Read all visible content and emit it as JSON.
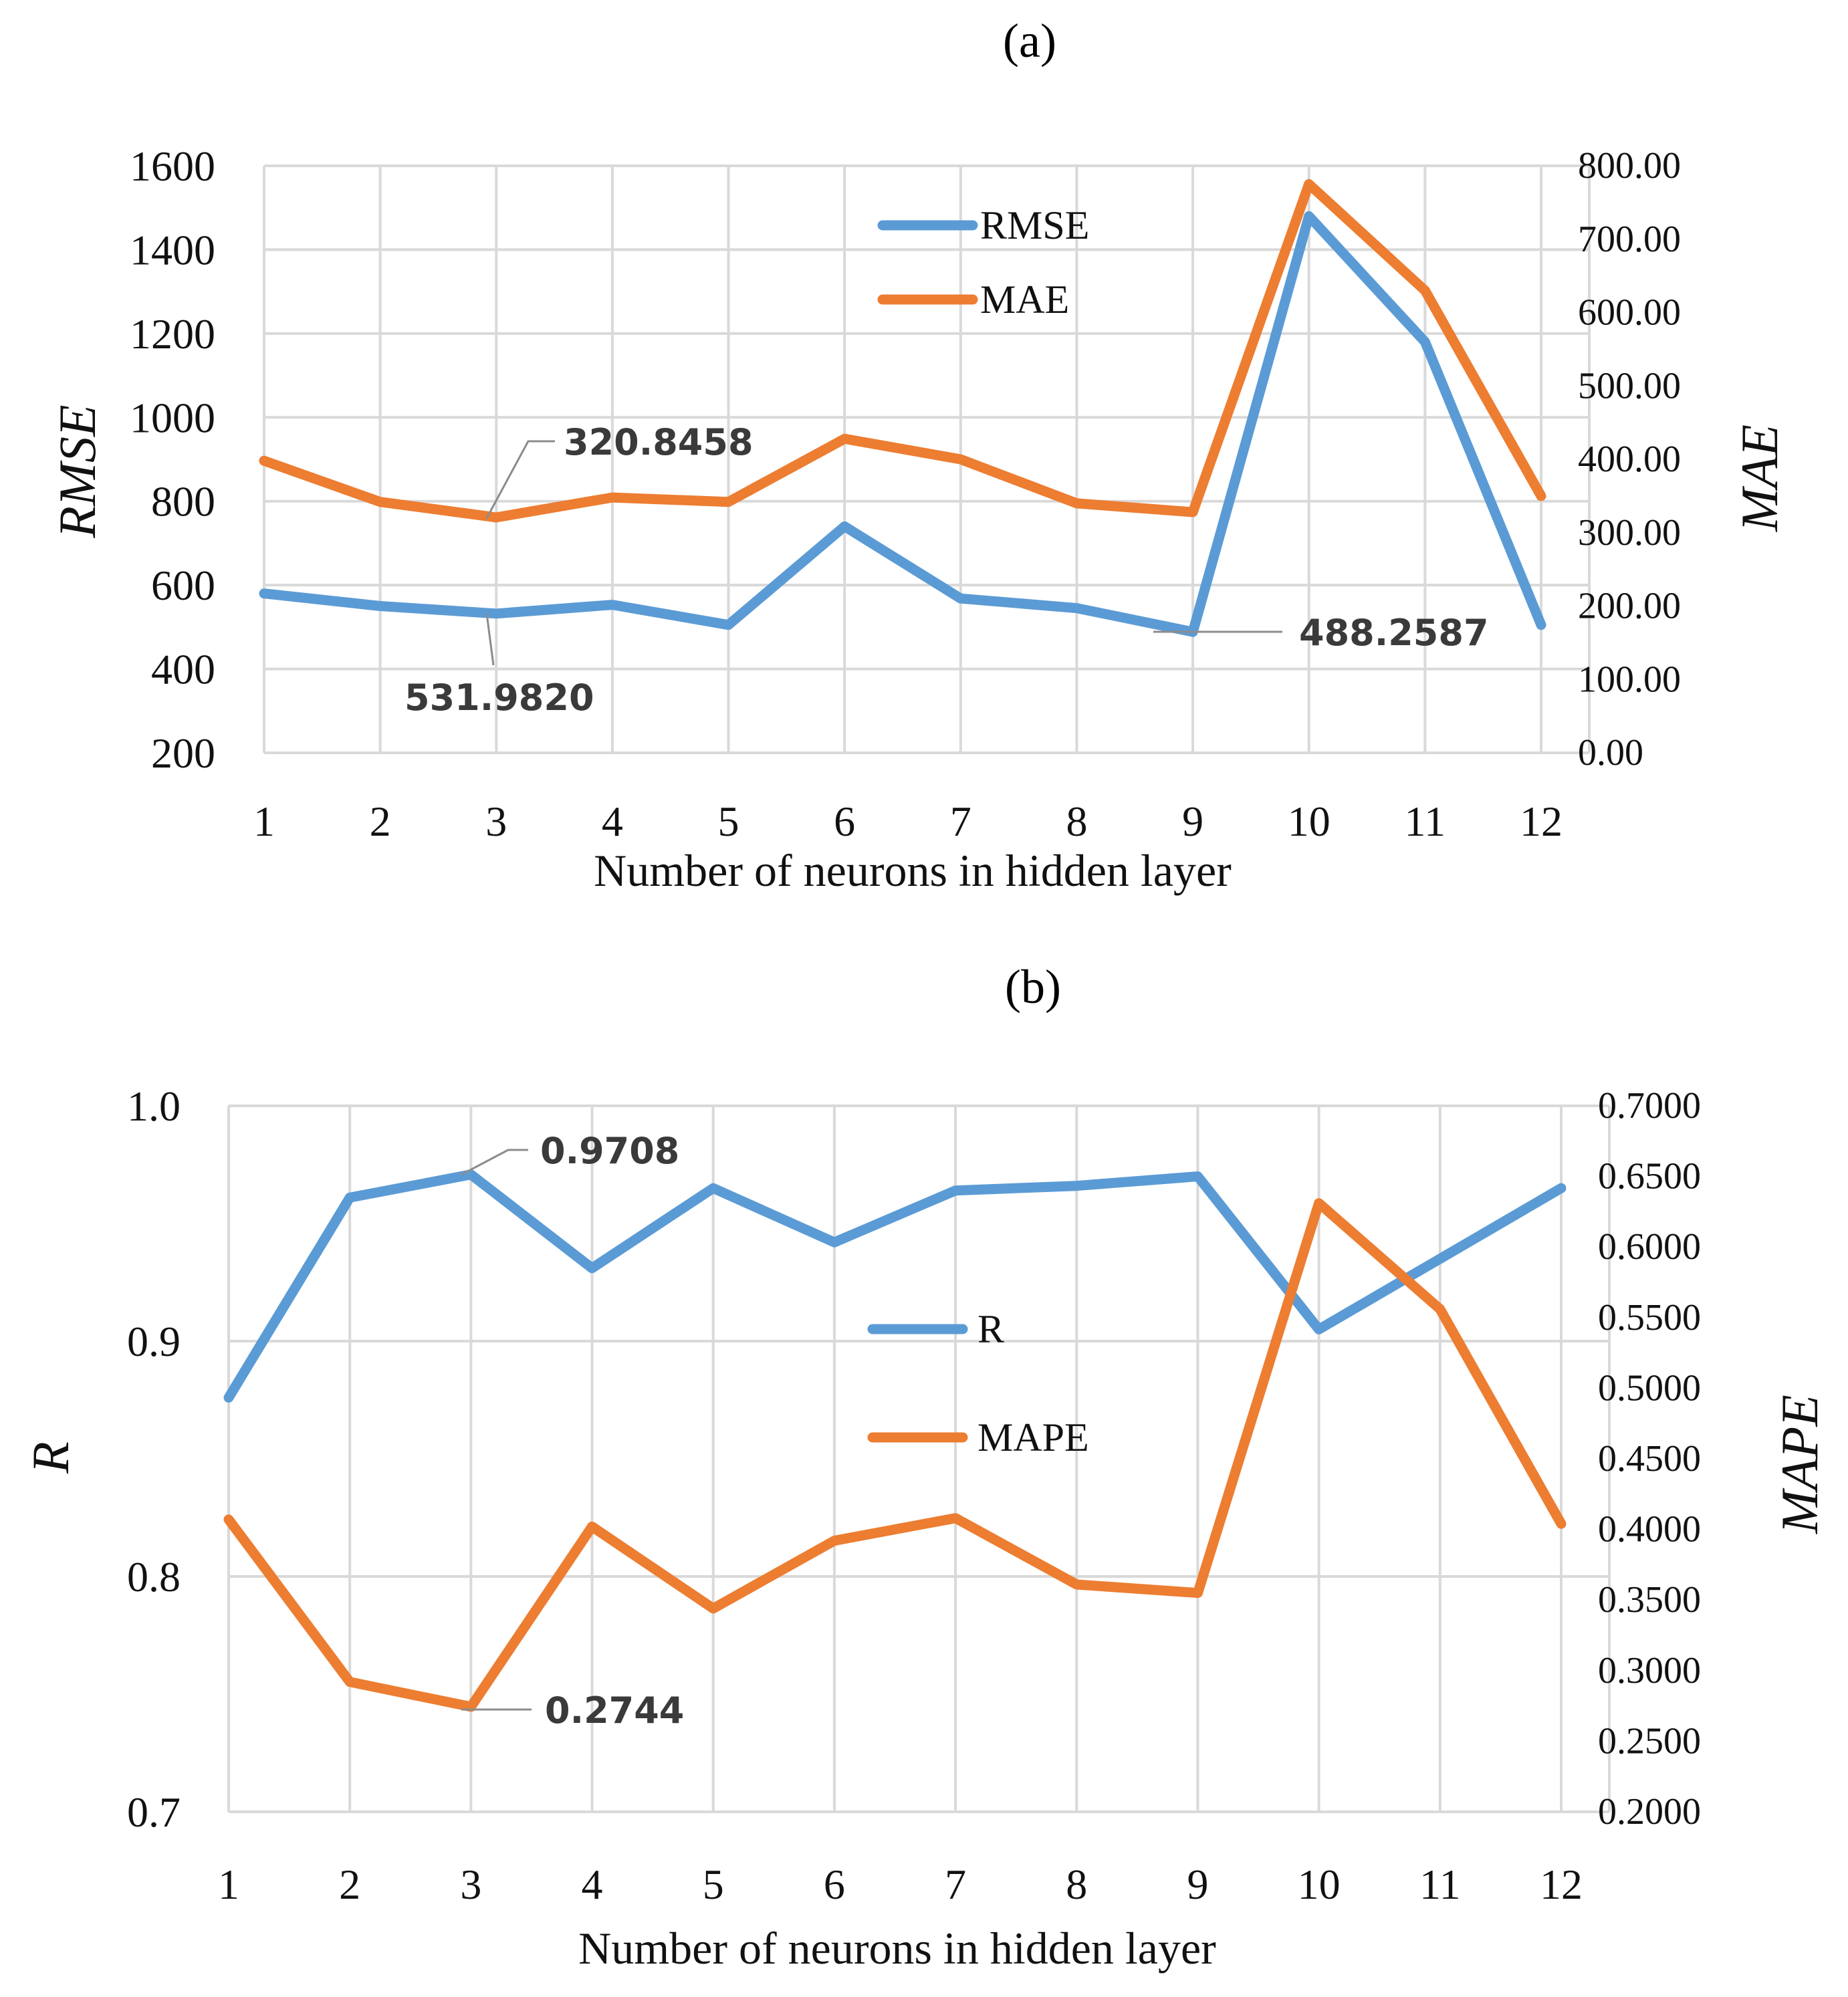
{
  "chart_data": [
    {
      "panel_label": "(a)",
      "type": "line",
      "x": [
        1,
        2,
        3,
        4,
        5,
        6,
        7,
        8,
        9,
        10,
        11,
        12
      ],
      "xlabel": "Number of neurons in hidden layer",
      "ylabel": "RMSE",
      "ylabel_right": "MAE",
      "ylim": [
        200,
        1600
      ],
      "ylim_right": [
        0,
        800
      ],
      "yticks": [
        "1600",
        "1400",
        "1200",
        "1000",
        "800",
        "600",
        "400",
        "200"
      ],
      "yticks_right": [
        "800.00",
        "700.00",
        "600.00",
        "500.00",
        "400.00",
        "300.00",
        "200.00",
        "100.00",
        "0.00"
      ],
      "grid": true,
      "legend_position": "top-center",
      "series": [
        {
          "name": "RMSE",
          "axis": "left",
          "color": "#5b9bd5",
          "values": [
            580,
            550,
            531.982,
            553,
            505,
            740,
            568,
            545,
            488.2587,
            1480,
            1180,
            505
          ]
        },
        {
          "name": "MAE",
          "axis": "right",
          "color": "#ed7d31",
          "values": [
            398,
            342,
            320.8458,
            348,
            342,
            428,
            400,
            340,
            328,
            775,
            630,
            350
          ]
        }
      ],
      "annotations": [
        {
          "text": "320.8458",
          "series": "MAE",
          "x": 3
        },
        {
          "text": "531.9820",
          "series": "RMSE",
          "x": 3
        },
        {
          "text": "488.2587",
          "series": "RMSE",
          "x": 9
        }
      ]
    },
    {
      "panel_label": "(b)",
      "type": "line",
      "x": [
        1,
        2,
        3,
        4,
        5,
        6,
        7,
        8,
        9,
        10,
        11,
        12
      ],
      "xlabel": "Number of neurons in hidden layer",
      "ylabel": "R",
      "ylabel_right": "MAPE",
      "ylim": [
        0.7,
        1.0
      ],
      "ylim_right": [
        0.2,
        0.7
      ],
      "yticks": [
        "1.0",
        "0.9",
        "0.8",
        "0.7"
      ],
      "yticks_right": [
        "0.7000",
        "0.6500",
        "0.6000",
        "0.5500",
        "0.5000",
        "0.4500",
        "0.4000",
        "0.3500",
        "0.3000",
        "0.2500",
        "0.2000"
      ],
      "grid": true,
      "legend_position": "center",
      "series": [
        {
          "name": "R",
          "axis": "left",
          "color": "#5b9bd5",
          "values": [
            0.876,
            0.961,
            0.9708,
            0.931,
            0.965,
            0.942,
            0.964,
            0.966,
            0.97,
            0.905,
            0.935,
            0.965
          ]
        },
        {
          "name": "MAPE",
          "axis": "right",
          "color": "#ed7d31",
          "values": [
            0.407,
            0.292,
            0.2744,
            0.402,
            0.344,
            0.392,
            0.408,
            0.361,
            0.355,
            0.631,
            0.556,
            0.404
          ]
        }
      ],
      "annotations": [
        {
          "text": "0.9708",
          "series": "R",
          "x": 3
        },
        {
          "text": "0.2744",
          "series": "MAPE",
          "x": 3
        }
      ]
    }
  ]
}
